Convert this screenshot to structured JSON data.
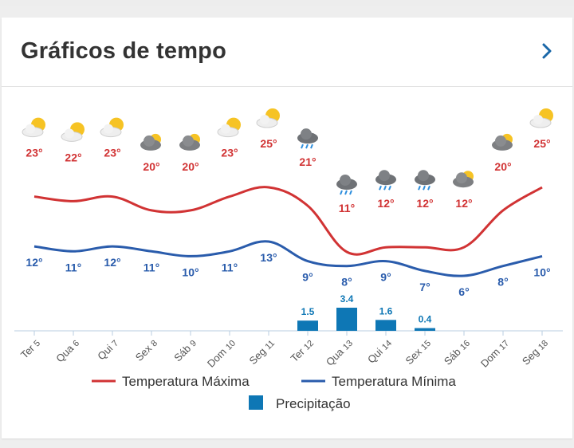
{
  "header": {
    "title": "Gráficos de tempo"
  },
  "colors": {
    "max": "#d13334",
    "min": "#2a5cac",
    "precip": "#0e77b5",
    "axis": "#b8cde0"
  },
  "chart_data": {
    "type": "line",
    "categories": [
      "Ter 5",
      "Qua 6",
      "Qui 7",
      "Sex 8",
      "Sáb 9",
      "Dom 10",
      "Seg 11",
      "Ter 12",
      "Qua 13",
      "Qui 14",
      "Sex 15",
      "Sáb 16",
      "Dom 17",
      "Seg 18"
    ],
    "series": [
      {
        "name": "Temperatura Máxima",
        "values": [
          23,
          22,
          23,
          20,
          20,
          23,
          25,
          21,
          11,
          12,
          12,
          12,
          20,
          25
        ]
      },
      {
        "name": "Temperatura Mínima",
        "values": [
          12,
          11,
          12,
          11,
          10,
          11,
          13,
          9,
          8,
          9,
          7,
          6,
          8,
          10
        ]
      }
    ],
    "max_labels": [
      "23°",
      "22°",
      "23°",
      "20°",
      "20°",
      "23°",
      "25°",
      "21°",
      "11°",
      "12°",
      "12°",
      "12°",
      "20°",
      "25°"
    ],
    "min_labels": [
      "12°",
      "11°",
      "12°",
      "11°",
      "10°",
      "11°",
      "13°",
      "9°",
      "8°",
      "9°",
      "7°",
      "6°",
      "8°",
      "10°"
    ],
    "precipitation": [
      {
        "index": 7,
        "value": 1.5,
        "label": "1.5"
      },
      {
        "index": 8,
        "value": 3.4,
        "label": "3.4"
      },
      {
        "index": 9,
        "value": 1.6,
        "label": "1.6"
      },
      {
        "index": 10,
        "value": 0.4,
        "label": "0.4"
      }
    ],
    "icons": [
      "partly-sunny",
      "partly-sunny",
      "partly-sunny",
      "cloudy",
      "cloudy",
      "partly-sunny",
      "partly-sunny",
      "rain",
      "rain",
      "rain",
      "rain",
      "cloudy",
      "cloudy",
      "partly-sunny"
    ],
    "legend": [
      {
        "label": "Temperatura Máxima",
        "kind": "line",
        "series": "max"
      },
      {
        "label": "Temperatura Mínima",
        "kind": "line",
        "series": "min"
      },
      {
        "label": "Precipitação",
        "kind": "box",
        "series": "precip"
      }
    ],
    "legend_position": "bottom"
  }
}
